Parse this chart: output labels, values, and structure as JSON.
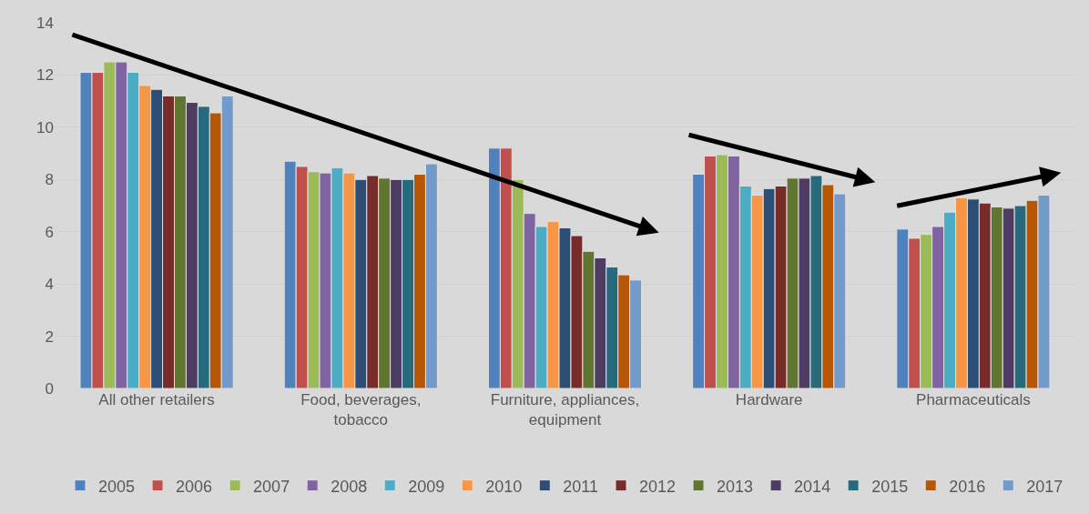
{
  "chart_data": {
    "type": "bar",
    "categories": [
      "All other retailers",
      "Food, beverages, tobacco",
      "Furniture, appliances, equipment",
      "Hardware",
      "Pharmaceuticals"
    ],
    "series": [
      {
        "name": "2005",
        "color": "#4f81bd",
        "values": [
          12.1,
          8.7,
          9.2,
          8.2,
          6.1
        ]
      },
      {
        "name": "2006",
        "color": "#c0504d",
        "values": [
          12.1,
          8.5,
          9.2,
          8.9,
          5.75
        ]
      },
      {
        "name": "2007",
        "color": "#9bbb59",
        "values": [
          12.5,
          8.3,
          8.0,
          8.95,
          5.9
        ]
      },
      {
        "name": "2008",
        "color": "#8064a2",
        "values": [
          12.5,
          8.25,
          6.7,
          8.9,
          6.2
        ]
      },
      {
        "name": "2009",
        "color": "#4bacc6",
        "values": [
          12.1,
          8.45,
          6.2,
          7.75,
          6.75
        ]
      },
      {
        "name": "2010",
        "color": "#f79646",
        "values": [
          11.6,
          8.25,
          6.4,
          7.4,
          7.3
        ]
      },
      {
        "name": "2011",
        "color": "#2c4d75",
        "values": [
          11.45,
          8.0,
          6.15,
          7.65,
          7.25
        ]
      },
      {
        "name": "2012",
        "color": "#772c2a",
        "values": [
          11.2,
          8.15,
          5.85,
          7.75,
          7.1
        ]
      },
      {
        "name": "2013",
        "color": "#5f7530",
        "values": [
          11.2,
          8.05,
          5.25,
          8.05,
          6.95
        ]
      },
      {
        "name": "2014",
        "color": "#4d3b62",
        "values": [
          10.95,
          8.0,
          5.0,
          8.05,
          6.9
        ]
      },
      {
        "name": "2015",
        "color": "#276a7c",
        "values": [
          10.8,
          8.0,
          4.65,
          8.15,
          7.0
        ]
      },
      {
        "name": "2016",
        "color": "#b65708",
        "values": [
          10.55,
          8.2,
          4.35,
          7.8,
          7.2
        ]
      },
      {
        "name": "2017",
        "color": "#729aca",
        "values": [
          11.2,
          8.6,
          4.15,
          7.45,
          7.4
        ]
      }
    ],
    "ylim": [
      0,
      14
    ],
    "yticks": [
      0,
      2,
      4,
      6,
      8,
      10,
      12,
      14
    ],
    "grid": "y",
    "legend": "bottom"
  }
}
